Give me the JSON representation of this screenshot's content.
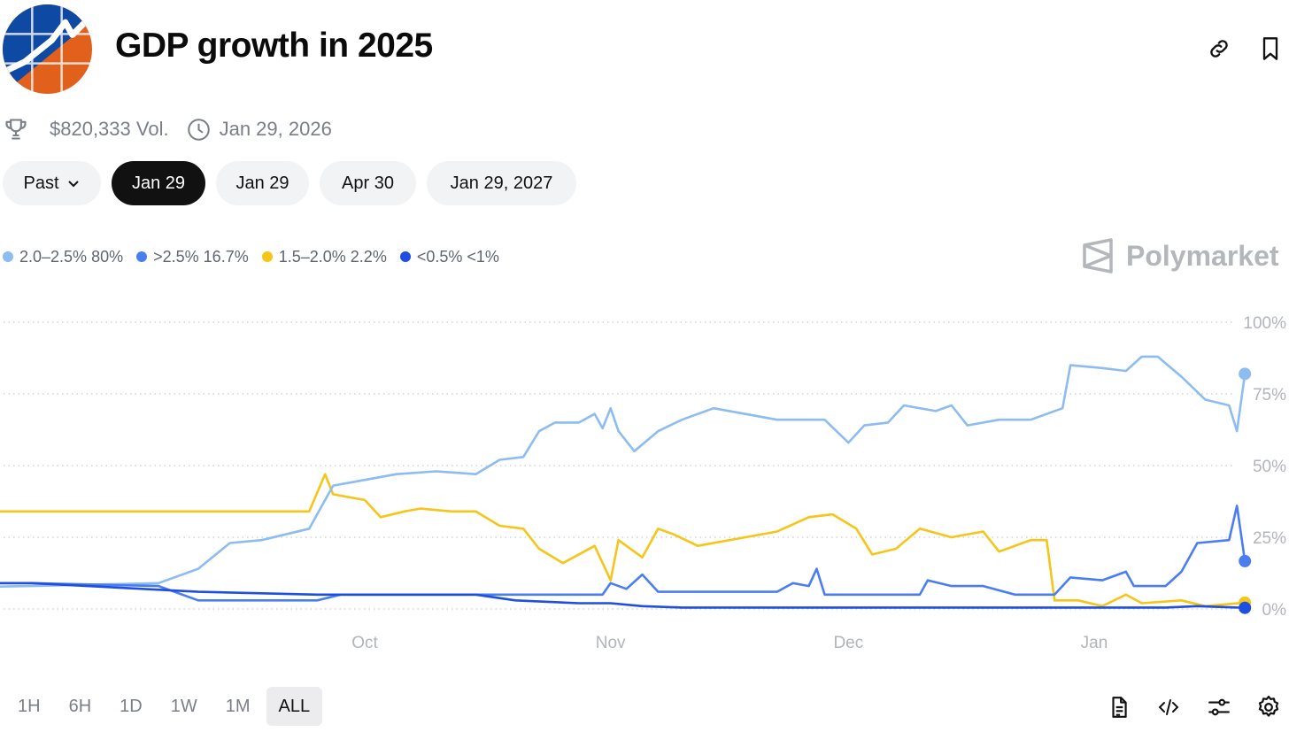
{
  "header": {
    "title": "GDP growth in 2025",
    "icons": [
      "link-icon",
      "bookmark-icon"
    ]
  },
  "meta": {
    "volume": "$820,333 Vol.",
    "end_date": "Jan 29, 2026",
    "icons": [
      "trophy-icon",
      "clock-icon"
    ]
  },
  "date_tabs": {
    "past_label": "Past",
    "items": [
      "Jan 29",
      "Jan 29",
      "Apr 30",
      "Jan 29, 2027"
    ],
    "active_index": 0
  },
  "legend": [
    {
      "name": "2.0–2.5%",
      "value": "80%",
      "color": "#8cbcf0"
    },
    {
      "name": ">2.5%",
      "value": "16.7%",
      "color": "#4a7ef0"
    },
    {
      "name": "1.5–2.0%",
      "value": "2.2%",
      "color": "#f5c518"
    },
    {
      "name": "<0.5%",
      "value": "<1%",
      "color": "#1e4fe0"
    }
  ],
  "brand": "Polymarket",
  "time_ranges": {
    "items": [
      "1H",
      "6H",
      "1D",
      "1W",
      "1M",
      "ALL"
    ],
    "active": "ALL"
  },
  "tools": [
    "document-icon",
    "code-icon",
    "sliders-icon",
    "settings-icon"
  ],
  "chart_data": {
    "type": "line",
    "x_axis_type": "date",
    "x_tick_labels": [
      "Oct",
      "Nov",
      "Dec",
      "Jan"
    ],
    "x_tick_dates": [
      "2025-10-01",
      "2025-11-01",
      "2025-12-01",
      "2026-01-01"
    ],
    "y_tick_labels": [
      "0%",
      "25%",
      "50%",
      "75%",
      "100%"
    ],
    "ylim": [
      0,
      100
    ],
    "grid": true,
    "y_axis_side": "right",
    "series": [
      {
        "name": "2.0–2.5%",
        "color": "#8cbcf0",
        "points": [
          [
            "2025-07-30",
            7
          ],
          [
            "2025-08-20",
            8
          ],
          [
            "2025-09-05",
            9
          ],
          [
            "2025-09-10",
            14
          ],
          [
            "2025-09-14",
            23
          ],
          [
            "2025-09-18",
            24
          ],
          [
            "2025-09-24",
            28
          ],
          [
            "2025-09-27",
            43
          ],
          [
            "2025-10-01",
            45
          ],
          [
            "2025-10-05",
            47
          ],
          [
            "2025-10-10",
            48
          ],
          [
            "2025-10-15",
            47
          ],
          [
            "2025-10-18",
            52
          ],
          [
            "2025-10-21",
            53
          ],
          [
            "2025-10-23",
            62
          ],
          [
            "2025-10-25",
            65
          ],
          [
            "2025-10-28",
            65
          ],
          [
            "2025-10-30",
            68
          ],
          [
            "2025-10-31",
            63
          ],
          [
            "2025-11-01",
            70
          ],
          [
            "2025-11-02",
            62
          ],
          [
            "2025-11-04",
            55
          ],
          [
            "2025-11-07",
            62
          ],
          [
            "2025-11-10",
            66
          ],
          [
            "2025-11-14",
            70
          ],
          [
            "2025-11-18",
            68
          ],
          [
            "2025-11-22",
            66
          ],
          [
            "2025-11-28",
            66
          ],
          [
            "2025-12-01",
            58
          ],
          [
            "2025-12-03",
            64
          ],
          [
            "2025-12-06",
            65
          ],
          [
            "2025-12-08",
            71
          ],
          [
            "2025-12-12",
            69
          ],
          [
            "2025-12-14",
            71
          ],
          [
            "2025-12-16",
            64
          ],
          [
            "2025-12-20",
            66
          ],
          [
            "2025-12-24",
            66
          ],
          [
            "2025-12-28",
            70
          ],
          [
            "2025-12-29",
            85
          ],
          [
            "2026-01-02",
            84
          ],
          [
            "2026-01-05",
            83
          ],
          [
            "2026-01-07",
            88
          ],
          [
            "2026-01-09",
            88
          ],
          [
            "2026-01-12",
            81
          ],
          [
            "2026-01-15",
            73
          ],
          [
            "2026-01-18",
            71
          ],
          [
            "2026-01-19",
            62
          ],
          [
            "2026-01-20",
            82
          ]
        ]
      },
      {
        "name": ">2.5%",
        "color": "#4a7ef0",
        "points": [
          [
            "2025-07-30",
            12
          ],
          [
            "2025-08-02",
            9
          ],
          [
            "2025-08-20",
            9
          ],
          [
            "2025-09-05",
            8
          ],
          [
            "2025-09-10",
            3
          ],
          [
            "2025-09-25",
            3
          ],
          [
            "2025-09-28",
            5
          ],
          [
            "2025-10-15",
            5
          ],
          [
            "2025-10-31",
            5
          ],
          [
            "2025-11-01",
            9
          ],
          [
            "2025-11-03",
            7
          ],
          [
            "2025-11-05",
            12
          ],
          [
            "2025-11-07",
            6
          ],
          [
            "2025-11-22",
            6
          ],
          [
            "2025-11-24",
            9
          ],
          [
            "2025-11-26",
            8
          ],
          [
            "2025-11-27",
            14
          ],
          [
            "2025-11-28",
            5
          ],
          [
            "2025-12-10",
            5
          ],
          [
            "2025-12-11",
            10
          ],
          [
            "2025-12-14",
            8
          ],
          [
            "2025-12-18",
            8
          ],
          [
            "2025-12-22",
            5
          ],
          [
            "2025-12-27",
            5
          ],
          [
            "2025-12-29",
            11
          ],
          [
            "2026-01-02",
            10
          ],
          [
            "2026-01-05",
            13
          ],
          [
            "2026-01-06",
            8
          ],
          [
            "2026-01-10",
            8
          ],
          [
            "2026-01-12",
            13
          ],
          [
            "2026-01-14",
            23
          ],
          [
            "2026-01-18",
            24
          ],
          [
            "2026-01-19",
            36
          ],
          [
            "2026-01-20",
            16.7
          ]
        ]
      },
      {
        "name": "1.5–2.0%",
        "color": "#f5c518",
        "points": [
          [
            "2025-07-30",
            33
          ],
          [
            "2025-08-01",
            34
          ],
          [
            "2025-08-05",
            34
          ],
          [
            "2025-08-20",
            34
          ],
          [
            "2025-09-10",
            34
          ],
          [
            "2025-09-20",
            34
          ],
          [
            "2025-09-24",
            34
          ],
          [
            "2025-09-26",
            47
          ],
          [
            "2025-09-27",
            40
          ],
          [
            "2025-10-01",
            38
          ],
          [
            "2025-10-03",
            32
          ],
          [
            "2025-10-06",
            34
          ],
          [
            "2025-10-08",
            35
          ],
          [
            "2025-10-12",
            34
          ],
          [
            "2025-10-15",
            34
          ],
          [
            "2025-10-18",
            29
          ],
          [
            "2025-10-21",
            28
          ],
          [
            "2025-10-23",
            21
          ],
          [
            "2025-10-26",
            16
          ],
          [
            "2025-10-30",
            22
          ],
          [
            "2025-11-01",
            10
          ],
          [
            "2025-11-02",
            24
          ],
          [
            "2025-11-05",
            18
          ],
          [
            "2025-11-07",
            28
          ],
          [
            "2025-11-09",
            26
          ],
          [
            "2025-11-12",
            22
          ],
          [
            "2025-11-18",
            25
          ],
          [
            "2025-11-22",
            27
          ],
          [
            "2025-11-26",
            32
          ],
          [
            "2025-11-29",
            33
          ],
          [
            "2025-12-02",
            28
          ],
          [
            "2025-12-04",
            19
          ],
          [
            "2025-12-07",
            21
          ],
          [
            "2025-12-10",
            28
          ],
          [
            "2025-12-14",
            25
          ],
          [
            "2025-12-18",
            27
          ],
          [
            "2025-12-20",
            20
          ],
          [
            "2025-12-24",
            24
          ],
          [
            "2025-12-26",
            24
          ],
          [
            "2025-12-27",
            3
          ],
          [
            "2025-12-30",
            3
          ],
          [
            "2026-01-02",
            1
          ],
          [
            "2026-01-05",
            5
          ],
          [
            "2026-01-07",
            2
          ],
          [
            "2026-01-12",
            3
          ],
          [
            "2026-01-15",
            1
          ],
          [
            "2026-01-20",
            2.2
          ]
        ]
      },
      {
        "name": "<0.5%",
        "color": "#1e4fe0",
        "points": [
          [
            "2025-07-30",
            9
          ],
          [
            "2025-08-20",
            9
          ],
          [
            "2025-09-10",
            6
          ],
          [
            "2025-09-25",
            5
          ],
          [
            "2025-10-15",
            5
          ],
          [
            "2025-10-20",
            3
          ],
          [
            "2025-10-28",
            2
          ],
          [
            "2025-11-01",
            2
          ],
          [
            "2025-11-05",
            1
          ],
          [
            "2025-11-10",
            0.5
          ],
          [
            "2025-12-01",
            0.5
          ],
          [
            "2025-12-20",
            0.5
          ],
          [
            "2026-01-10",
            0.5
          ],
          [
            "2026-01-14",
            1
          ],
          [
            "2026-01-20",
            0.4
          ]
        ]
      }
    ]
  }
}
